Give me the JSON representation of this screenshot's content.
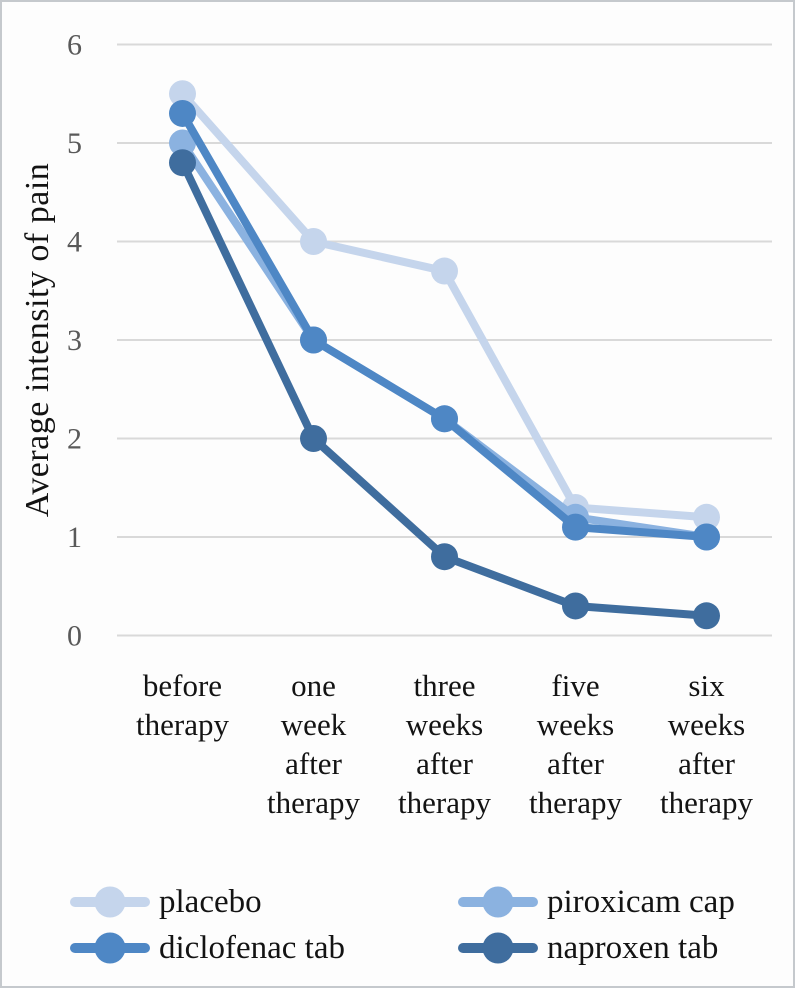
{
  "figure": {
    "background": "#fdfdfd",
    "border_color": "#c5c9cd"
  },
  "chart_data": {
    "type": "line",
    "title": "",
    "ylabel": "Average intensity of pain",
    "xlabel": "",
    "ylim": [
      0,
      6
    ],
    "yticks": [
      0,
      1,
      2,
      3,
      4,
      5,
      6
    ],
    "grid": true,
    "gridline_color": "#d9d9d9",
    "tick_label_color": "#595959",
    "category_label_color": "#131313",
    "legend_position": "bottom",
    "categories": [
      "before therapy",
      "one week after therapy",
      "three weeks after therapy",
      "five weeks after therapy",
      "six weeks after therapy"
    ],
    "series": [
      {
        "name": "placebo",
        "color": "#c5d5ec",
        "values": [
          5.5,
          4.0,
          3.7,
          1.3,
          1.2
        ]
      },
      {
        "name": "piroxicam cap",
        "color": "#8bb2e0",
        "values": [
          5.0,
          3.0,
          2.2,
          1.2,
          1.0
        ]
      },
      {
        "name": "diclofenac tab",
        "color": "#4e87c5",
        "values": [
          5.3,
          3.0,
          2.2,
          1.1,
          1.0
        ]
      },
      {
        "name": "naproxen tab",
        "color": "#3f6d9e",
        "values": [
          4.8,
          2.0,
          0.8,
          0.3,
          0.2
        ]
      }
    ]
  }
}
